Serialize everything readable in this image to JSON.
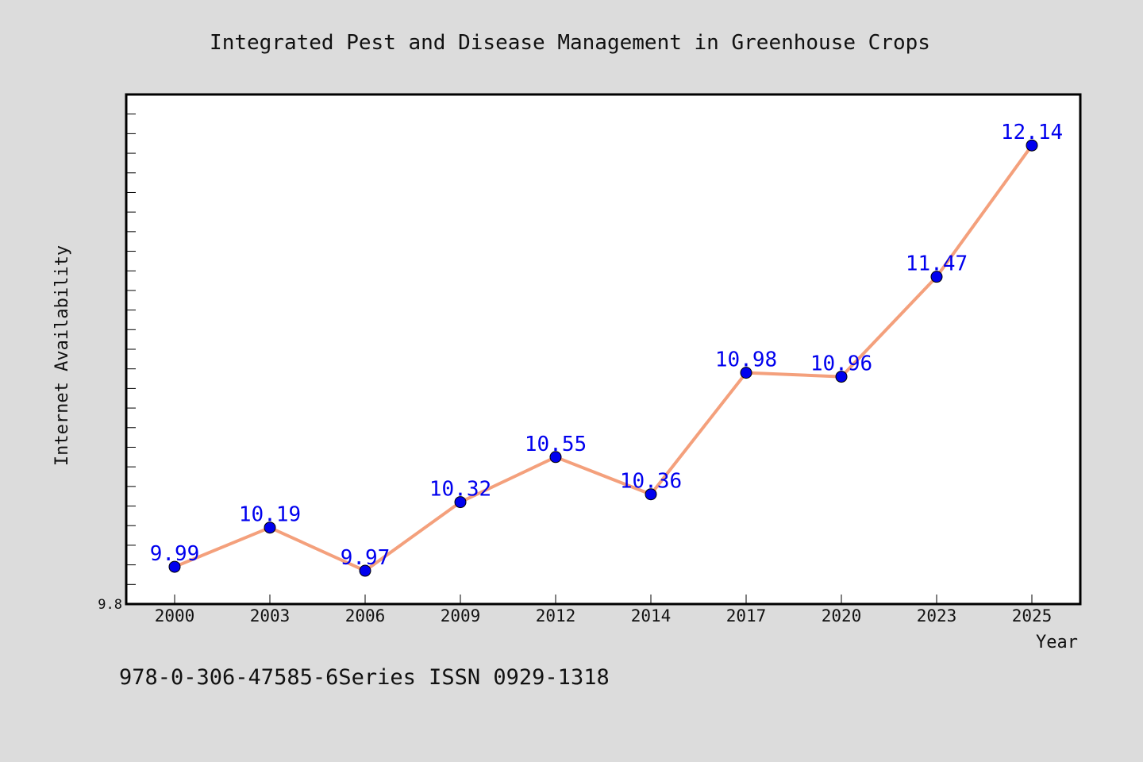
{
  "chart_data": {
    "type": "line",
    "title": "Integrated Pest and Disease Management in Greenhouse Crops",
    "xlabel": "Year",
    "ylabel": "Internet Availability",
    "categories": [
      "2000",
      "2003",
      "2006",
      "2009",
      "2012",
      "2014",
      "2017",
      "2020",
      "2023",
      "2025"
    ],
    "series": [
      {
        "values": [
          9.99,
          10.19,
          9.97,
          10.32,
          10.55,
          10.36,
          10.98,
          10.96,
          11.47,
          12.14
        ],
        "data_labels": [
          "9.99",
          "10.19",
          "9.97",
          "10.32",
          "10.55",
          "10.36",
          "10.98",
          "10.96",
          "11.47",
          "12.14"
        ]
      }
    ],
    "ylim": [
      9.8,
      12.4
    ],
    "ytick_labels": [
      {
        "value": 9.8,
        "label": "9.8"
      }
    ],
    "grid": false,
    "line_color": "#f4a07c",
    "marker_color": "#0000ee",
    "label_color": "#0000ee"
  },
  "footer_text": "978-0-306-47585-6Series ISSN 0929-1318"
}
